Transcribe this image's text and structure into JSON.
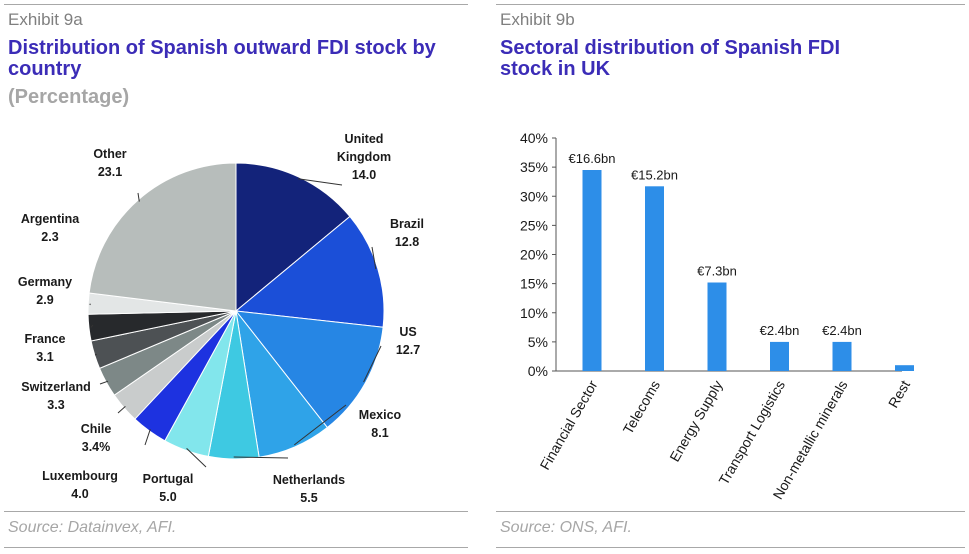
{
  "panel_a": {
    "exhibit": "Exhibit 9a",
    "title_line1": "Distribution of Spanish outward FDI stock by",
    "title_line2": "country",
    "subtitle": "(Percentage)",
    "source": "Source: Datainvex, AFI."
  },
  "panel_b": {
    "exhibit": "Exhibit 9b",
    "title_line1": "Sectoral distribution of Spanish FDI",
    "title_line2": "stock in UK",
    "source": "Source: ONS, AFI."
  },
  "chart_data": [
    {
      "type": "pie",
      "title": "Distribution of Spanish outward FDI stock by country",
      "subtitle": "(Percentage)",
      "start": "12 o'clock, clockwise",
      "slices": [
        {
          "label": [
            "United",
            "Kingdom"
          ],
          "value_label": "14.0",
          "value": 14.0,
          "color": "#13237a"
        },
        {
          "label": [
            "Brazil"
          ],
          "value_label": "12.8",
          "value": 12.8,
          "color": "#1b4fd8"
        },
        {
          "label": [
            "US"
          ],
          "value_label": "12.7",
          "value": 12.7,
          "color": "#2686e4"
        },
        {
          "label": [
            "Mexico"
          ],
          "value_label": "8.1",
          "value": 8.1,
          "color": "#2fa3e8"
        },
        {
          "label": [
            "Netherlands"
          ],
          "value_label": "5.5",
          "value": 5.5,
          "color": "#3ec9e2"
        },
        {
          "label": [
            "Portugal"
          ],
          "value_label": "5.0",
          "value": 5.0,
          "color": "#82e6ec"
        },
        {
          "label": [
            "Luxembourg"
          ],
          "value_label": "4.0",
          "value": 4.0,
          "color": "#1d32e0"
        },
        {
          "label": [
            "Chile"
          ],
          "value_label": "3.4%",
          "value": 3.4,
          "color": "#c9cccc"
        },
        {
          "label": [
            "Switzerland"
          ],
          "value_label": "3.3",
          "value": 3.3,
          "color": "#7d8887"
        },
        {
          "label": [
            "France"
          ],
          "value_label": "3.1",
          "value": 3.1,
          "color": "#4d5154"
        },
        {
          "label": [
            "Germany"
          ],
          "value_label": "2.9",
          "value": 2.9,
          "color": "#27292c"
        },
        {
          "label": [
            "Argentina"
          ],
          "value_label": "2.3",
          "value": 2.3,
          "color": "#e3e6e6"
        },
        {
          "label": [
            "Other"
          ],
          "value_label": "23.1",
          "value": 23.1,
          "color": "#b7bdbb"
        }
      ]
    },
    {
      "type": "bar",
      "title": "Sectoral distribution of Spanish FDI stock in UK",
      "categories": [
        "Financial Sector",
        "Telecoms",
        "Energy Supply",
        "Transport Logistics",
        "Non-metallic minerals",
        "Rest"
      ],
      "values": [
        34.5,
        31.7,
        15.2,
        5.0,
        5.0,
        1.0
      ],
      "data_labels": [
        "€16.6bn",
        "€15.2bn",
        "€7.3bn",
        "€2.4bn",
        "€2.4bn",
        ""
      ],
      "yticks": [
        "0%",
        "5%",
        "10%",
        "15%",
        "20%",
        "25%",
        "30%",
        "35%",
        "40%"
      ],
      "ylim": [
        0,
        40
      ],
      "bar_color": "#2d8ee8",
      "grid": false
    }
  ]
}
